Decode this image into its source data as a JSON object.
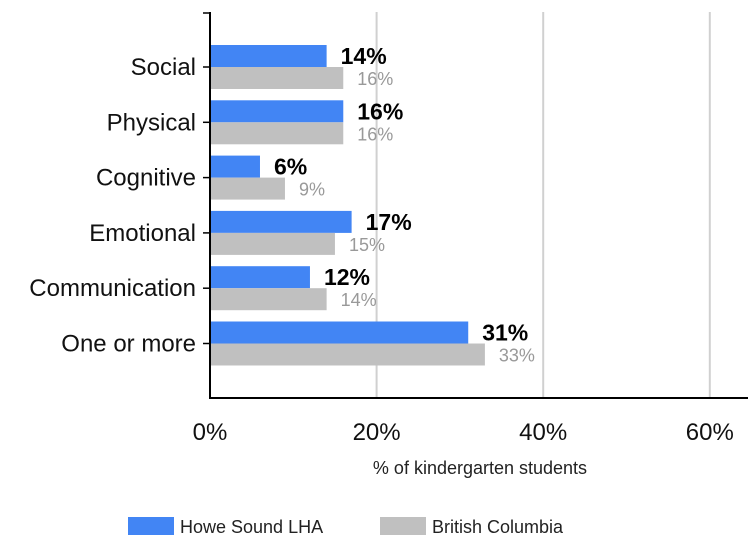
{
  "chart_data": {
    "type": "bar",
    "orientation": "horizontal",
    "categories": [
      "Social",
      "Physical",
      "Cognitive",
      "Emotional",
      "Communication",
      "One or more"
    ],
    "series": [
      {
        "name": "Howe Sound LHA",
        "values": [
          14,
          16,
          6,
          17,
          12,
          31
        ],
        "labels": [
          "14%",
          "16%",
          "6%",
          "17%",
          "12%",
          "31%"
        ],
        "color": "#4285f4"
      },
      {
        "name": "British Columbia",
        "values": [
          16,
          16,
          9,
          15,
          14,
          33
        ],
        "labels": [
          "16%",
          "16%",
          "9%",
          "15%",
          "14%",
          "33%"
        ],
        "color": "#c0c0c0"
      }
    ],
    "xlabel": "% of kindergarten students",
    "xlim": [
      0,
      64
    ],
    "xticks": [
      0,
      20,
      40,
      60
    ],
    "xtick_labels": [
      "0%",
      "20%",
      "40%",
      "60%"
    ],
    "grid": true,
    "legend_position": "bottom"
  }
}
